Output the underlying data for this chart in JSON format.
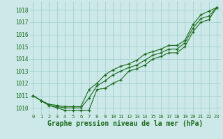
{
  "x": [
    0,
    1,
    2,
    3,
    4,
    5,
    6,
    7,
    8,
    9,
    10,
    11,
    12,
    13,
    14,
    15,
    16,
    17,
    18,
    19,
    20,
    21,
    22,
    23
  ],
  "line_min": [
    1011.0,
    1010.6,
    1010.2,
    1010.0,
    1009.8,
    1009.8,
    1009.8,
    1009.8,
    1011.5,
    1011.6,
    1012.0,
    1012.3,
    1013.0,
    1013.2,
    1013.5,
    1014.0,
    1014.2,
    1014.5,
    1014.5,
    1015.0,
    1016.2,
    1017.0,
    1017.2,
    1018.2
  ],
  "line_avg": [
    1011.0,
    1010.6,
    1010.2,
    1010.1,
    1010.0,
    1010.0,
    1010.0,
    1010.8,
    1011.8,
    1012.2,
    1012.7,
    1013.0,
    1013.3,
    1013.5,
    1013.9,
    1014.3,
    1014.5,
    1014.8,
    1014.8,
    1015.3,
    1016.5,
    1017.3,
    1017.5,
    1018.2
  ],
  "line_max": [
    1011.0,
    1010.6,
    1010.3,
    1010.2,
    1010.1,
    1010.1,
    1010.1,
    1011.5,
    1012.0,
    1012.7,
    1013.1,
    1013.4,
    1013.6,
    1013.9,
    1014.4,
    1014.6,
    1014.8,
    1015.1,
    1015.1,
    1015.5,
    1016.8,
    1017.6,
    1017.9,
    1018.2
  ],
  "line_color": "#1a6b1a",
  "bg_color": "#cce8e8",
  "grid_color": "#9ecece",
  "xlabel": "Graphe pression niveau de la mer (hPa)",
  "ylim_min": 1009.5,
  "ylim_max": 1018.7,
  "yticks": [
    1010,
    1011,
    1012,
    1013,
    1014,
    1015,
    1016,
    1017,
    1018
  ],
  "xtick_fontsize": 5.0,
  "ytick_fontsize": 5.5,
  "xlabel_fontsize": 7.0
}
